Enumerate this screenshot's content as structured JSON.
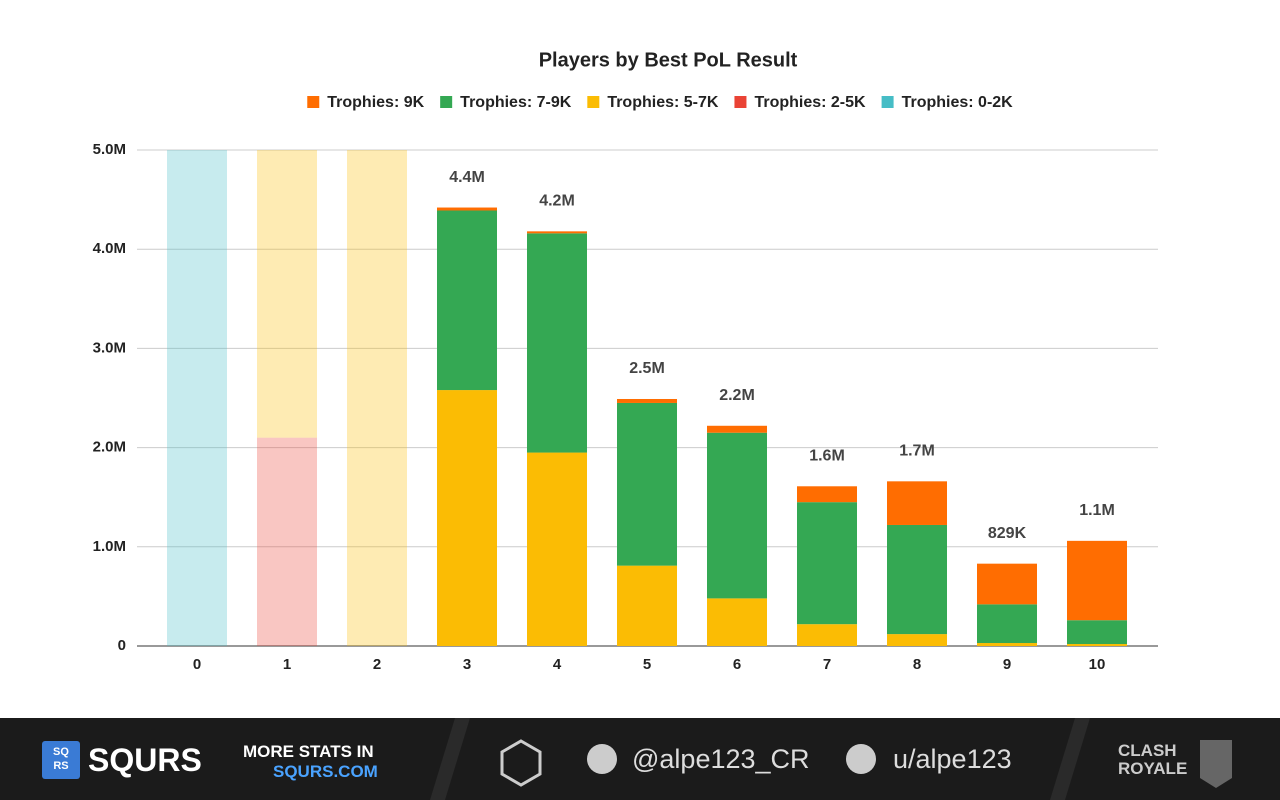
{
  "chart_data": {
    "type": "stacked_bar",
    "title": "Players by Best PoL Result",
    "categories": [
      "0",
      "1",
      "2",
      "3",
      "4",
      "5",
      "6",
      "7",
      "8",
      "9",
      "10"
    ],
    "series": [
      {
        "name": "Trophies: 0-2K",
        "color": "#46bdc6",
        "values": [
          5000000,
          0,
          0,
          0,
          0,
          0,
          0,
          0,
          0,
          0,
          0
        ]
      },
      {
        "name": "Trophies: 2-5K",
        "color": "#ea4335",
        "values": [
          0,
          2100000,
          0,
          0,
          0,
          0,
          0,
          0,
          0,
          0,
          0
        ]
      },
      {
        "name": "Trophies: 5-7K",
        "color": "#fbbc04",
        "values": [
          0,
          2900000,
          5000000,
          2580000,
          1950000,
          810000,
          480000,
          220000,
          120000,
          30000,
          20000
        ]
      },
      {
        "name": "Trophies: 7-9K",
        "color": "#34a853",
        "values": [
          0,
          0,
          0,
          1810000,
          2210000,
          1640000,
          1670000,
          1230000,
          1100000,
          390000,
          240000
        ]
      },
      {
        "name": "Trophies: 9K",
        "color": "#ff6d01",
        "values": [
          0,
          0,
          0,
          30000,
          20000,
          40000,
          70000,
          160000,
          440000,
          410000,
          800000
        ]
      }
    ],
    "faded": [
      true,
      true,
      true,
      false,
      false,
      false,
      false,
      false,
      false,
      false,
      false
    ],
    "totals": [
      null,
      null,
      null,
      4420000,
      4180000,
      2490000,
      2220000,
      1610000,
      1660000,
      829000,
      1060000
    ],
    "total_labels": [
      null,
      null,
      null,
      "4.4M",
      "4.2M",
      "2.5M",
      "2.2M",
      "1.6M",
      "1.7M",
      "829K",
      "1.1M"
    ],
    "ylim": [
      0,
      5000000
    ],
    "yticks": [
      0,
      {
        "value": 1000000,
        "label": "1.0M"
      },
      {
        "value": 2000000,
        "label": "2.0M"
      },
      {
        "value": 3000000,
        "label": "3.0M"
      },
      {
        "value": 4000000,
        "label": "4.0M"
      },
      {
        "value": 5000000,
        "label": "5.0M"
      }
    ],
    "grid": true,
    "legend": "top"
  },
  "footer": {
    "brand": "SQURS",
    "brand_icon": "SQ RS",
    "promo_line1": "MORE STATS IN",
    "promo_line2": "SQURS.COM",
    "twitter": "@alpe123_CR",
    "reddit": "u/alpe123",
    "game": "CLASH ROYALE"
  }
}
